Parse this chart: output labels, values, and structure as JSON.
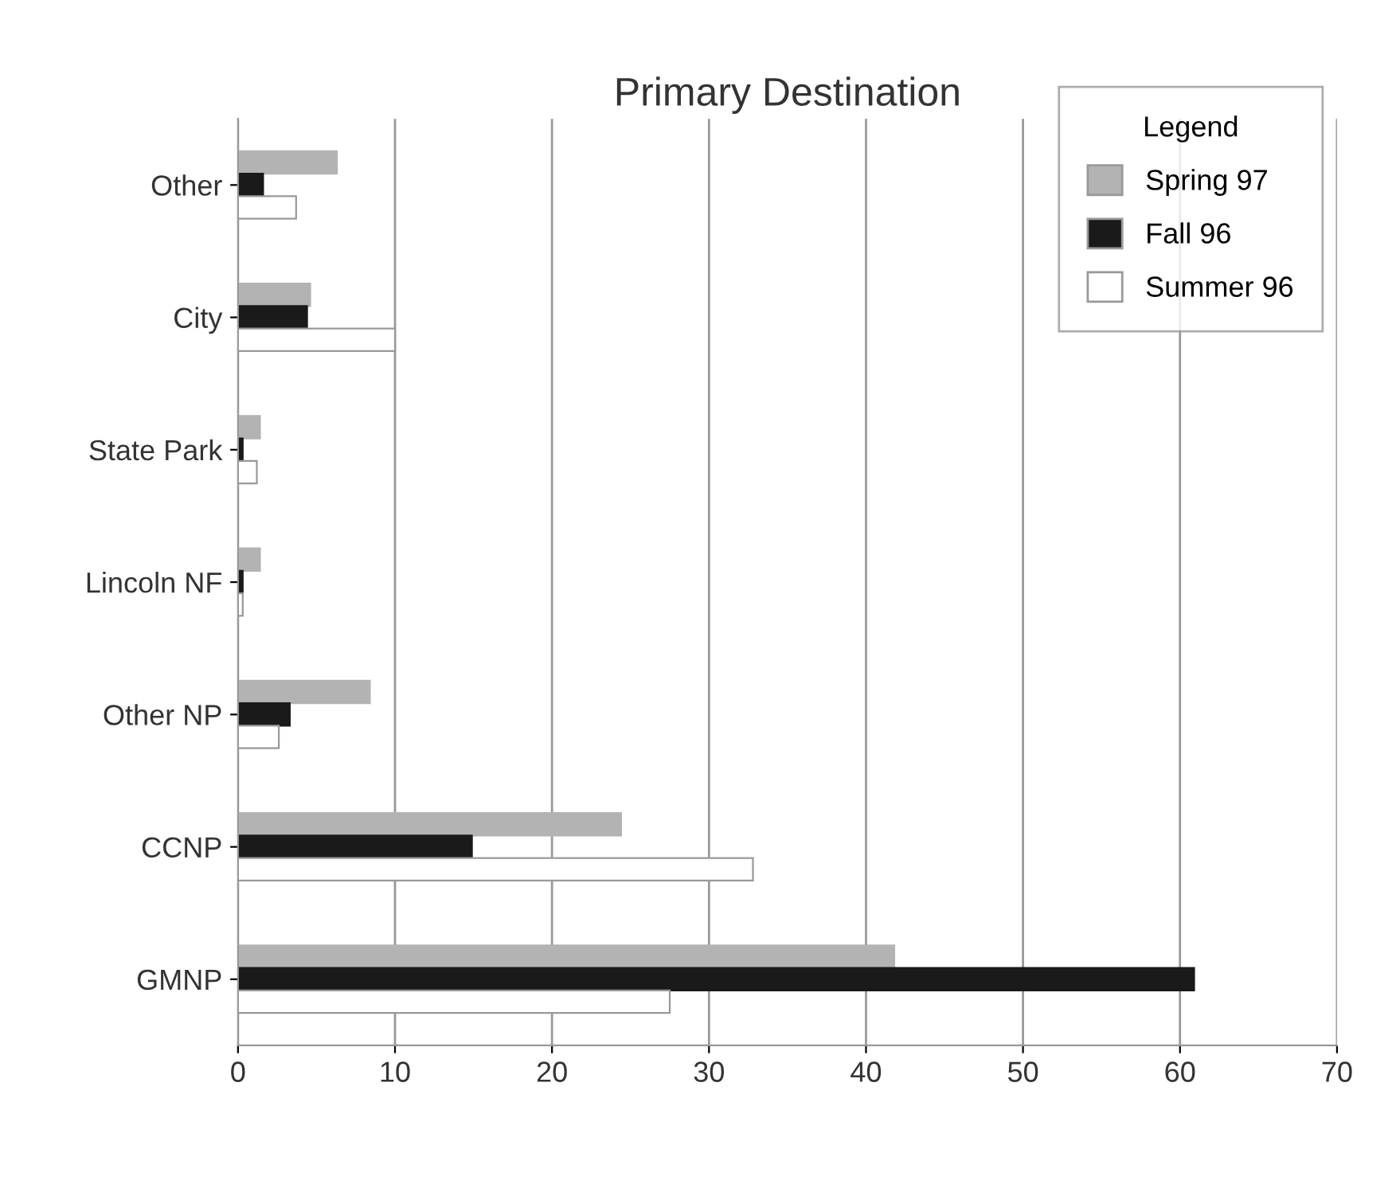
{
  "chart_data": {
    "type": "bar",
    "orientation": "horizontal",
    "title": "Primary Destination",
    "legend_title": "Legend",
    "categories": [
      "Other",
      "City",
      "State Park",
      "Lincoln NF",
      "Other NP",
      "CCNP",
      "GMNP"
    ],
    "series": [
      {
        "name": "Spring 97",
        "color": "#b3b3b3",
        "values": [
          6.3,
          4.6,
          1.4,
          1.4,
          8.4,
          24.4,
          41.8
        ]
      },
      {
        "name": "Fall 96",
        "color": "#1a1a1a",
        "values": [
          1.6,
          4.4,
          0.3,
          0.3,
          3.3,
          14.9,
          60.9
        ]
      },
      {
        "name": "Summer 96",
        "color": "#ffffff",
        "values": [
          3.7,
          10.0,
          1.2,
          0.3,
          2.6,
          32.8,
          27.5
        ]
      }
    ],
    "xlim": [
      0,
      70
    ],
    "xticks": [
      0,
      10,
      20,
      30,
      40,
      50,
      60,
      70
    ],
    "grid": "x",
    "legend": "top right"
  }
}
